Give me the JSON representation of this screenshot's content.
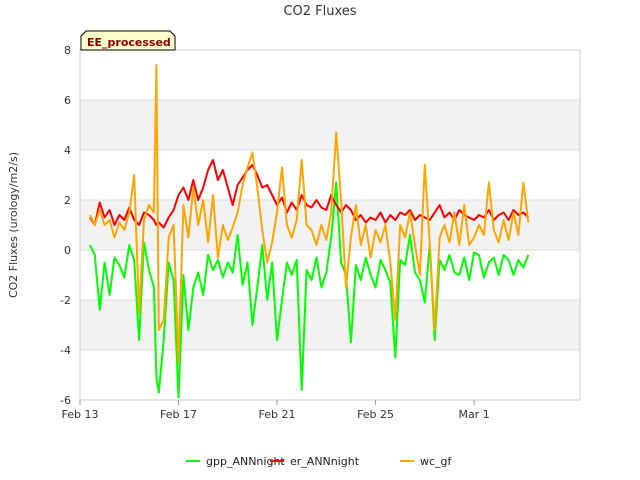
{
  "chart_data": {
    "type": "line",
    "title": "CO2 Fluxes",
    "ylabel": "CO2 Fluxes (urology/m2/s)",
    "xlabel": "",
    "ylim": [
      -6,
      8
    ],
    "yticks": [
      -6,
      -4,
      -2,
      0,
      2,
      4,
      6,
      8
    ],
    "xlim": [
      13,
      33.3
    ],
    "xticks": [
      {
        "value": 13,
        "label": "Feb 13"
      },
      {
        "value": 17,
        "label": "Feb 17"
      },
      {
        "value": 21,
        "label": "Feb 21"
      },
      {
        "value": 25,
        "label": "Feb 25"
      },
      {
        "value": 29,
        "label": "Mar 1"
      }
    ],
    "badge": "EE_processed",
    "grid": true,
    "legend_position": "bottom-center",
    "series": [
      {
        "name": "gpp_ANNnight",
        "color": "#00ff00",
        "x": [
          13.4,
          13.6,
          13.8,
          14.0,
          14.2,
          14.4,
          14.6,
          14.8,
          15.0,
          15.2,
          15.4,
          15.6,
          15.8,
          16.0,
          16.1,
          16.2,
          16.4,
          16.6,
          16.8,
          17.0,
          17.2,
          17.4,
          17.6,
          17.8,
          18.0,
          18.2,
          18.4,
          18.6,
          18.8,
          19.0,
          19.2,
          19.4,
          19.6,
          19.8,
          20.0,
          20.2,
          20.4,
          20.6,
          20.8,
          21.0,
          21.2,
          21.4,
          21.6,
          21.8,
          22.0,
          22.2,
          22.4,
          22.6,
          22.8,
          23.0,
          23.2,
          23.4,
          23.6,
          23.8,
          24.0,
          24.2,
          24.4,
          24.6,
          24.8,
          25.0,
          25.2,
          25.4,
          25.6,
          25.8,
          26.0,
          26.2,
          26.4,
          26.6,
          26.8,
          27.0,
          27.2,
          27.4,
          27.6,
          27.8,
          28.0,
          28.2,
          28.4,
          28.6,
          28.8,
          29.0,
          29.2,
          29.4,
          29.6,
          29.8,
          30.0,
          30.2,
          30.4,
          30.6,
          30.8,
          31.0,
          31.2
        ],
        "values": [
          0.2,
          -0.2,
          -2.4,
          -0.5,
          -1.8,
          -0.3,
          -0.6,
          -1.1,
          0.2,
          -0.4,
          -3.6,
          0.3,
          -0.8,
          -1.5,
          -5.1,
          -5.7,
          -3.6,
          -0.5,
          -1.2,
          -5.9,
          -1.0,
          -3.2,
          -1.5,
          -0.9,
          -1.8,
          -0.2,
          -0.8,
          -0.4,
          -1.1,
          -0.5,
          -0.9,
          0.6,
          -1.4,
          -0.5,
          -3.0,
          -1.5,
          0.2,
          -2.0,
          -0.5,
          -3.6,
          -2.0,
          -0.5,
          -1.0,
          -0.4,
          -5.6,
          -0.8,
          -1.2,
          -0.3,
          -1.5,
          -0.9,
          0.5,
          2.7,
          -0.5,
          -1.0,
          -3.7,
          -0.6,
          -1.2,
          -0.3,
          -1.0,
          -1.5,
          -0.4,
          -0.8,
          -1.3,
          -4.3,
          -0.4,
          -0.6,
          0.6,
          -0.9,
          -1.2,
          -2.1,
          0.2,
          -3.6,
          -0.4,
          -0.8,
          -0.2,
          -0.9,
          -1.0,
          -0.3,
          -1.2,
          -0.1,
          -0.2,
          -1.1,
          -0.5,
          -0.3,
          -1.0,
          -0.2,
          -0.4,
          -1.0,
          -0.4,
          -0.7,
          -0.2
        ]
      },
      {
        "name": "er_ANNnight",
        "color": "#ff0000",
        "x": [
          13.4,
          13.6,
          13.8,
          14.0,
          14.2,
          14.4,
          14.6,
          14.8,
          15.0,
          15.2,
          15.4,
          15.6,
          15.8,
          16.0,
          16.1,
          16.2,
          16.4,
          16.6,
          16.8,
          17.0,
          17.2,
          17.4,
          17.6,
          17.8,
          18.0,
          18.2,
          18.4,
          18.6,
          18.8,
          19.0,
          19.2,
          19.4,
          19.6,
          19.8,
          20.0,
          20.2,
          20.4,
          20.6,
          20.8,
          21.0,
          21.2,
          21.4,
          21.6,
          21.8,
          22.0,
          22.2,
          22.4,
          22.6,
          22.8,
          23.0,
          23.2,
          23.4,
          23.6,
          23.8,
          24.0,
          24.2,
          24.4,
          24.6,
          24.8,
          25.0,
          25.2,
          25.4,
          25.6,
          25.8,
          26.0,
          26.2,
          26.4,
          26.6,
          26.8,
          27.0,
          27.2,
          27.4,
          27.6,
          27.8,
          28.0,
          28.2,
          28.4,
          28.6,
          28.8,
          29.0,
          29.2,
          29.4,
          29.6,
          29.8,
          30.0,
          30.2,
          30.4,
          30.6,
          30.8,
          31.0,
          31.2
        ],
        "values": [
          1.3,
          1.0,
          1.9,
          1.3,
          1.6,
          1.0,
          1.4,
          1.2,
          1.7,
          1.2,
          1.0,
          1.5,
          1.4,
          1.2,
          1.0,
          1.1,
          0.9,
          1.3,
          1.6,
          2.2,
          2.5,
          2.0,
          2.8,
          2.0,
          2.5,
          3.2,
          3.6,
          2.8,
          3.2,
          2.5,
          1.8,
          2.6,
          2.9,
          3.2,
          3.4,
          3.0,
          2.5,
          2.6,
          2.2,
          1.8,
          2.1,
          1.5,
          1.9,
          1.6,
          2.2,
          1.8,
          1.7,
          2.0,
          1.7,
          1.6,
          2.2,
          1.8,
          1.5,
          1.8,
          1.6,
          1.2,
          1.4,
          1.1,
          1.3,
          1.2,
          1.5,
          1.1,
          1.4,
          1.2,
          1.5,
          1.4,
          1.6,
          1.2,
          1.4,
          1.3,
          1.2,
          1.5,
          1.8,
          1.3,
          1.5,
          1.2,
          1.6,
          1.4,
          1.3,
          1.2,
          1.4,
          1.3,
          1.6,
          1.2,
          1.4,
          1.5,
          1.2,
          1.6,
          1.4,
          1.5,
          1.3
        ]
      },
      {
        "name": "wc_gf",
        "color": "#ffa500",
        "x": [
          13.4,
          13.6,
          13.8,
          14.0,
          14.2,
          14.4,
          14.6,
          14.8,
          15.0,
          15.2,
          15.4,
          15.6,
          15.8,
          16.0,
          16.1,
          16.2,
          16.4,
          16.6,
          16.8,
          17.0,
          17.2,
          17.4,
          17.6,
          17.8,
          18.0,
          18.2,
          18.4,
          18.6,
          18.8,
          19.0,
          19.2,
          19.4,
          19.6,
          19.8,
          20.0,
          20.2,
          20.4,
          20.6,
          20.8,
          21.0,
          21.2,
          21.4,
          21.6,
          21.8,
          22.0,
          22.2,
          22.4,
          22.6,
          22.8,
          23.0,
          23.2,
          23.4,
          23.6,
          23.8,
          24.0,
          24.2,
          24.4,
          24.6,
          24.8,
          25.0,
          25.2,
          25.4,
          25.6,
          25.8,
          26.0,
          26.2,
          26.4,
          26.6,
          26.8,
          27.0,
          27.2,
          27.4,
          27.6,
          27.8,
          28.0,
          28.2,
          28.4,
          28.6,
          28.8,
          29.0,
          29.2,
          29.4,
          29.6,
          29.8,
          30.0,
          30.2,
          30.4,
          30.6,
          30.8,
          31.0,
          31.2
        ],
        "values": [
          1.4,
          1.0,
          1.6,
          1.0,
          1.2,
          0.5,
          1.1,
          0.8,
          1.5,
          3.0,
          -2.5,
          1.2,
          1.8,
          1.5,
          7.4,
          -3.2,
          -2.8,
          0.5,
          1.0,
          -4.5,
          1.8,
          0.5,
          2.5,
          1.0,
          2.0,
          0.3,
          2.2,
          -0.3,
          1.0,
          0.4,
          0.9,
          1.5,
          2.6,
          3.3,
          3.9,
          2.5,
          0.8,
          -0.5,
          0.3,
          1.5,
          3.3,
          1.0,
          0.5,
          1.2,
          3.6,
          1.0,
          0.8,
          0.2,
          1.0,
          0.4,
          1.5,
          4.7,
          2.0,
          -1.5,
          0.5,
          1.8,
          0.2,
          1.0,
          -0.3,
          0.8,
          0.3,
          1.0,
          -0.5,
          -2.8,
          1.0,
          0.5,
          1.5,
          0.2,
          -1.0,
          3.4,
          0.2,
          -3.2,
          0.5,
          1.0,
          0.3,
          1.5,
          0.2,
          1.8,
          0.2,
          0.5,
          1.0,
          0.6,
          2.7,
          0.8,
          0.3,
          1.2,
          0.4,
          1.5,
          0.6,
          2.7,
          1.1
        ]
      }
    ]
  }
}
